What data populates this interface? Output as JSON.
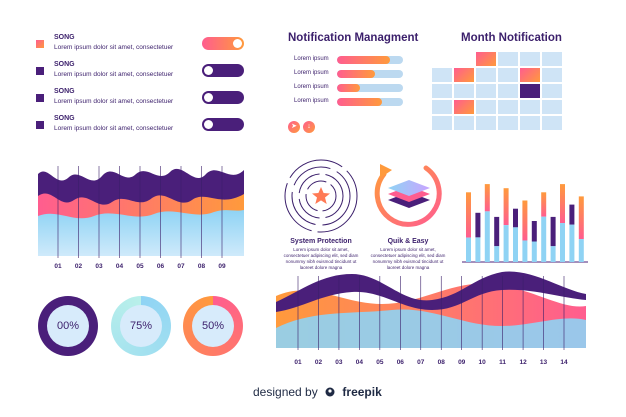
{
  "songs": [
    {
      "title": "SONG",
      "desc": "Lorem ipsum dolor sit amet, consectetuer",
      "toggle_on": true
    },
    {
      "title": "SONG",
      "desc": "Lorem ipsum dolor sit amet, consectetuer",
      "toggle_on": false
    },
    {
      "title": "SONG",
      "desc": "Lorem ipsum dolor sit amet, consectetuer",
      "toggle_on": false
    },
    {
      "title": "SONG",
      "desc": "Lorem ipsum dolor sit amet, consectetuer",
      "toggle_on": false
    }
  ],
  "notification": {
    "title": "Notification Managment",
    "items": [
      {
        "label": "Lorem ipsum",
        "fill": 0.8
      },
      {
        "label": "Lorem ipsum",
        "fill": 0.58
      },
      {
        "label": "Lorem ipsum",
        "fill": 0.35
      },
      {
        "label": "Lorem ipsum",
        "fill": 0.68
      }
    ]
  },
  "month": {
    "title": "Month Notification"
  },
  "features": [
    {
      "title": "System Protection",
      "desc": "Lorem ipsum dolor sit amet, consectetuer adipiscing elit, sed diam nonummy nibh euismod tincidunt ut laoreet dolore magna"
    },
    {
      "title": "Quik & Easy",
      "desc": "Lorem ipsum dolor sit amet, consectetuer adipiscing elit, sed diam nonummy nibh euismod tincidunt ut laoreet dolore magna"
    }
  ],
  "wave_chart_left": {
    "x_ticks": [
      "01",
      "02",
      "03",
      "04",
      "05",
      "06",
      "07",
      "08",
      "09"
    ]
  },
  "wave_chart_bottom": {
    "x_ticks": [
      "01",
      "02",
      "03",
      "04",
      "05",
      "06",
      "07",
      "08",
      "09",
      "10",
      "11",
      "12",
      "13",
      "14"
    ]
  },
  "donuts": [
    {
      "label": "00%",
      "value": 0.0
    },
    {
      "label": "75%",
      "value": 0.75
    },
    {
      "label": "50%",
      "value": 0.5
    }
  ],
  "bars_right": {
    "values": [
      0.85,
      0.6,
      0.95,
      0.55,
      0.9,
      0.65,
      0.75,
      0.5,
      0.85,
      0.55,
      0.95,
      0.7,
      0.8
    ]
  },
  "footer": {
    "prefix": "designed by",
    "brand": "freepik"
  },
  "colors": {
    "purple": "#4a1f7a",
    "pink": "#ff5d8f",
    "orange": "#ff9a3c",
    "light_blue": "#8fd3f4",
    "pale_blue": "#cfe4f6"
  }
}
